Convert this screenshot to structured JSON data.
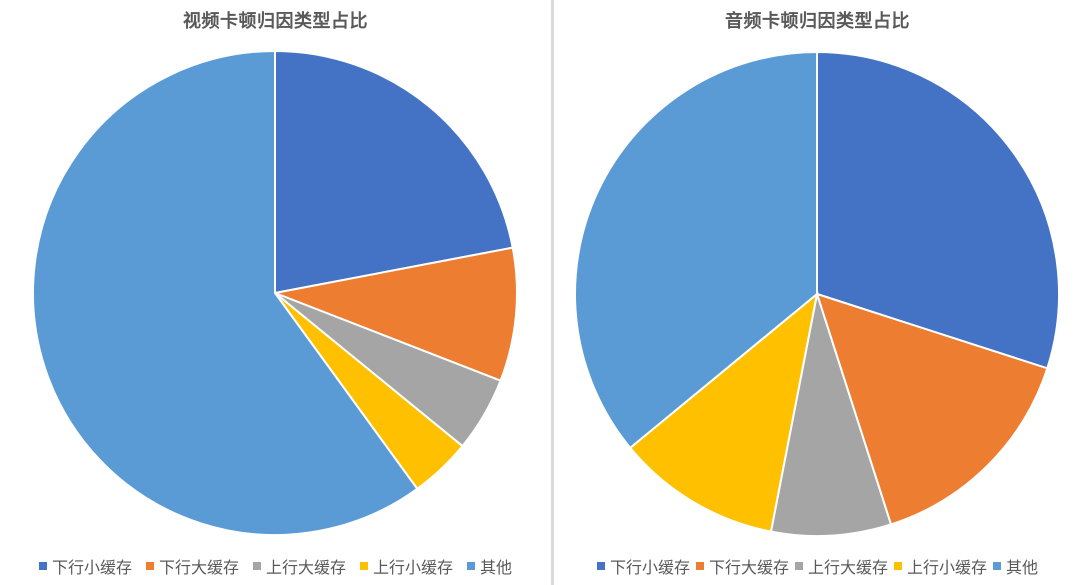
{
  "chart_data": [
    {
      "type": "pie",
      "title": "视频卡顿归因类型占比",
      "categories": [
        "下行小缓存",
        "下行大缓存",
        "上行大缓存",
        "上行小缓存",
        "其他"
      ],
      "values": [
        22.0,
        8.9,
        5.0,
        4.1,
        60.0
      ],
      "unit": "%",
      "colors": [
        "#4472C4",
        "#ED7D31",
        "#A5A5A5",
        "#FFC000",
        "#5B9BD5"
      ],
      "start_angle_deg": 0,
      "direction": "clockwise",
      "legend_position": "bottom",
      "data_labels": false
    },
    {
      "type": "pie",
      "title": "音频卡顿归因类型占比",
      "categories": [
        "下行小缓存",
        "下行大缓存",
        "上行大缓存",
        "上行小缓存",
        "其他"
      ],
      "values": [
        30.0,
        15.1,
        8.0,
        11.0,
        36.0
      ],
      "unit": "%",
      "colors": [
        "#4472C4",
        "#ED7D31",
        "#A5A5A5",
        "#FFC000",
        "#5B9BD5"
      ],
      "start_angle_deg": 0,
      "direction": "clockwise",
      "legend_position": "bottom",
      "data_labels": false
    }
  ],
  "charts": [
    {
      "title": "视频卡顿归因类型占比",
      "legend": [
        "下行小缓存",
        "下行大缓存",
        "上行大缓存",
        "上行小缓存",
        "其他"
      ]
    },
    {
      "title": "音频卡顿归因类型占比",
      "legend": [
        "下行小缓存",
        "下行大缓存",
        "上行大缓存",
        "上行小缓存",
        "其他"
      ]
    }
  ]
}
